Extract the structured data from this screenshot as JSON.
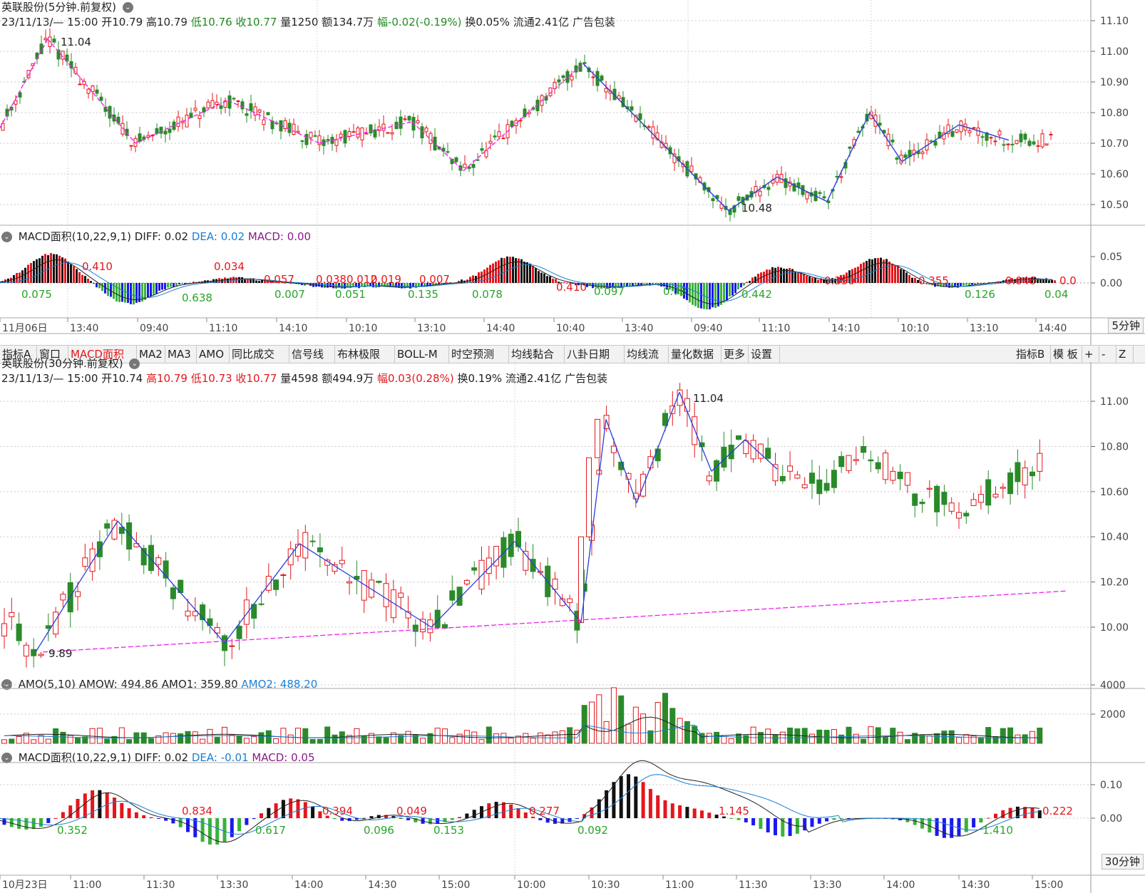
{
  "top_info": {
    "name": "英联股份(5分钟.前复权)",
    "date": "23/11/13/— 15:00",
    "open_label": "开",
    "open": "10.79",
    "high_label": "高",
    "high": "10.79",
    "low_label": "低",
    "low": "10.76",
    "close_label": "收",
    "close": "10.77",
    "vol_label": "量",
    "vol": "1250",
    "amt_label": "额",
    "amt": "134.7万",
    "chg_label": "幅",
    "chg": "-0.02(-0.19%)",
    "turn": "换0.05%",
    "float": "流通2.41亿",
    "industry": "广告包装"
  },
  "top_macd_legend": {
    "title": "MACD面积(10,22,9,1)",
    "diff": "DIFF: 0.02",
    "dea": "DEA: 0.02",
    "macd": "MACD: 0.00"
  },
  "toolbar": {
    "items": [
      "指标A",
      "窗口",
      "MACD面积",
      "MA2",
      "MA3",
      "AMO",
      "同比成交",
      "信号线",
      "布林极限",
      "BOLL-M",
      "时空预测",
      "均线黏合",
      "八卦日期",
      "均线流",
      "量化数据",
      "更多",
      "设置"
    ],
    "right": [
      "指标B",
      "模 板",
      "+",
      "-",
      "Z"
    ]
  },
  "bottom_info": {
    "name": "英联股份(30分钟.前复权)",
    "date": "23/11/13/— 15:00",
    "open_label": "开",
    "open": "10.74",
    "high_label": "高",
    "high": "10.79",
    "low_label": "低",
    "low": "10.73",
    "close_label": "收",
    "close": "10.77",
    "vol_label": "量",
    "vol": "4598",
    "amt_label": "额",
    "amt": "494.9万",
    "chg_label": "幅",
    "chg": "0.03(0.28%)",
    "turn": "换0.19%",
    "float": "流通2.41亿",
    "industry": "广告包装"
  },
  "amo_legend": {
    "title": "AMO(5,10)",
    "amow": "AMOW: 494.86",
    "amo1": "AMO1: 359.80",
    "amo2": "AMO2: 488.20"
  },
  "bottom_macd_legend": {
    "title": "MACD面积(10,22,9,1)",
    "diff": "DIFF: 0.02",
    "dea": "DEA: -0.01",
    "macd": "MACD: 0.05"
  },
  "period_top": "5分钟",
  "period_bottom": "30分钟",
  "colors": {
    "up": "#e4161c",
    "down": "#2a8a2a",
    "macd_neg": "#1a1aee",
    "zigzag_top": "#ee22ee",
    "zigzag_bottom": "#2a3ed8",
    "grid": "#c8c8c8"
  },
  "chart_data": [
    {
      "type": "candlestick",
      "name": "5-minute price",
      "y_ticks": [
        "11.10",
        "11.00",
        "10.90",
        "10.80",
        "10.70",
        "10.60",
        "10.50"
      ],
      "ylim": [
        10.44,
        11.12
      ],
      "x_ticks": [
        "11月06日",
        "13:40",
        "09:40",
        "11:10",
        "14:10",
        "10:10",
        "13:10",
        "14:40",
        "10:40",
        "13:40",
        "09:40",
        "11:10",
        "14:10",
        "10:10",
        "13:10",
        "14:40"
      ],
      "annotations": [
        "11.04",
        "10.48"
      ],
      "zigzag_points": [
        [
          10.75,
          11.04
        ],
        [
          10.7,
          10.7
        ],
        [
          10.84,
          10.84
        ],
        [
          10.7,
          10.7
        ],
        [
          10.77,
          10.77
        ],
        [
          10.61,
          10.61
        ],
        [
          10.96,
          10.96
        ],
        [
          10.48,
          10.48
        ],
        [
          10.59,
          10.59
        ],
        [
          10.51,
          10.51
        ],
        [
          10.8,
          10.8
        ],
        [
          10.64,
          10.64
        ],
        [
          10.76,
          10.76
        ],
        [
          10.71,
          10.71
        ]
      ]
    },
    {
      "type": "bar",
      "name": "5-minute MACD area",
      "y_ticks": [
        "0.05",
        "0.00"
      ],
      "data_labels": [
        "0.075",
        "0.410",
        "0.638",
        "0.034",
        "0.007",
        "0.057",
        "0.051",
        "0.038",
        "0.012",
        "0.019",
        "0.135",
        "0.007",
        "0.078",
        "0.410",
        "0.097",
        "0.78",
        "0.442",
        "0.390",
        "0.355",
        "0.126",
        "0.046",
        "0.04",
        "0.0"
      ]
    },
    {
      "type": "candlestick",
      "name": "30-minute price",
      "y_ticks": [
        "11.00",
        "10.80",
        "10.60",
        "10.40",
        "10.20",
        "10.00"
      ],
      "ylim": [
        9.82,
        11.12
      ],
      "x_ticks": [
        "10月23日",
        "11:00",
        "11:30",
        "13:30",
        "14:00",
        "14:30",
        "15:00",
        "10:00",
        "10:30",
        "11:00",
        "11:30",
        "13:30",
        "14:00",
        "14:30",
        "15:00"
      ],
      "annotations": [
        "11.04",
        "9.89"
      ]
    },
    {
      "type": "bar",
      "name": "AMO volume",
      "y_ticks": [
        "4000",
        "2000"
      ]
    },
    {
      "type": "bar",
      "name": "30-minute MACD area",
      "y_ticks": [
        "0.10",
        "0.00"
      ],
      "data_labels": [
        "0.352",
        "0.834",
        "0.617",
        "0.394",
        "0.049",
        "0.096",
        "0.277",
        "0.153",
        "0.092",
        "1.145",
        "1.410",
        "0.222"
      ]
    }
  ]
}
